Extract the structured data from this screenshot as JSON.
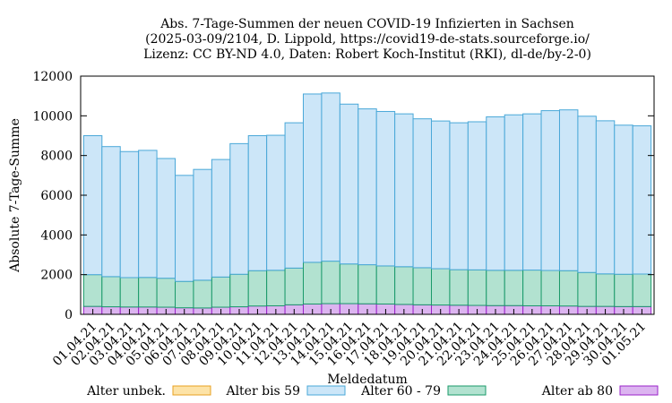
{
  "chart_data": {
    "type": "bar",
    "stacked": true,
    "title_lines": [
      "Abs. 7-Tage-Summen der neuen COVID-19 Infizierten in Sachsen",
      "(2025-03-09/2104, D. Lippold, https://covid19-de-stats.sourceforge.io/",
      "Lizenz: CC BY-ND 4.0, Daten: Robert Koch-Institut (RKI), dl-de/by-2-0)"
    ],
    "xlabel": "Meldedatum",
    "ylabel": "Absolute 7-Tage-Summe",
    "ylim": [
      0,
      12000
    ],
    "yticks": [
      0,
      2000,
      4000,
      6000,
      8000,
      10000,
      12000
    ],
    "categories": [
      "01.04.21",
      "02.04.21",
      "03.04.21",
      "04.04.21",
      "05.04.21",
      "06.04.21",
      "07.04.21",
      "08.04.21",
      "09.04.21",
      "10.04.21",
      "11.04.21",
      "12.04.21",
      "13.04.21",
      "14.04.21",
      "15.04.21",
      "16.04.21",
      "17.04.21",
      "18.04.21",
      "19.04.21",
      "20.04.21",
      "21.04.21",
      "22.04.21",
      "23.04.21",
      "24.04.21",
      "25.04.21",
      "26.04.21",
      "27.04.21",
      "28.04.21",
      "29.04.21",
      "30.04.21",
      "01.05.21"
    ],
    "legend_placement": "bottom",
    "series": [
      {
        "name": "Alter unbek.",
        "fill": "#fde3a7",
        "stroke": "#e8a020",
        "values": [
          0,
          0,
          0,
          0,
          0,
          0,
          0,
          0,
          0,
          0,
          0,
          0,
          0,
          0,
          0,
          0,
          0,
          0,
          0,
          0,
          0,
          0,
          0,
          0,
          0,
          0,
          0,
          0,
          0,
          0,
          0
        ]
      },
      {
        "name": "Alter ab 80",
        "fill": "#dcb4f0",
        "stroke": "#9a22c9",
        "values": [
          400,
          380,
          370,
          370,
          360,
          330,
          320,
          360,
          380,
          420,
          430,
          480,
          520,
          540,
          540,
          530,
          520,
          500,
          480,
          470,
          460,
          450,
          440,
          440,
          430,
          430,
          420,
          400,
          400,
          390,
          390
        ]
      },
      {
        "name": "Alter 60 - 79",
        "fill": "#b2e2d0",
        "stroke": "#1a9a6a",
        "values": [
          1600,
          1520,
          1480,
          1490,
          1460,
          1330,
          1400,
          1520,
          1640,
          1780,
          1790,
          1850,
          2100,
          2140,
          2000,
          1970,
          1920,
          1900,
          1870,
          1830,
          1790,
          1790,
          1780,
          1780,
          1800,
          1780,
          1780,
          1710,
          1640,
          1630,
          1640
        ]
      },
      {
        "name": "Alter bis 59",
        "fill": "#cce6f8",
        "stroke": "#4aa8d8",
        "values": [
          7000,
          6550,
          6350,
          6400,
          6030,
          5340,
          5580,
          5920,
          6580,
          6800,
          6800,
          7320,
          8480,
          8470,
          8050,
          7850,
          7780,
          7700,
          7500,
          7440,
          7400,
          7460,
          7730,
          7830,
          7870,
          8050,
          8100,
          7870,
          7710,
          7510,
          7470
        ]
      }
    ],
    "legend_order": [
      "Alter unbek.",
      "Alter bis 59",
      "Alter 60 - 79",
      "Alter ab 80"
    ],
    "grid": false
  }
}
